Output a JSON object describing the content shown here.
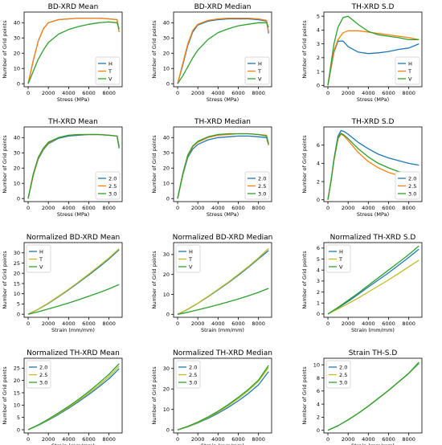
{
  "colors": {
    "blue": "#1f77b4",
    "orange": "#ff7f0e",
    "green": "#2ca02c",
    "olive": "#bcbd22",
    "darkgreen": "#2ca02c"
  },
  "chart_data": [
    {
      "type": "line",
      "title": "BD-XRD Mean",
      "xlabel": "Stress (MPa)",
      "ylabel": "Number of Grid points",
      "xlim": [
        -400,
        9300
      ],
      "ylim": [
        -2,
        47
      ],
      "xticks": [
        0,
        2000,
        4000,
        6000,
        8000
      ],
      "yticks": [
        0,
        10,
        20,
        30,
        40
      ],
      "legend": "lower-right",
      "x": [
        0,
        500,
        1000,
        1500,
        2000,
        3000,
        4000,
        5000,
        6000,
        7000,
        8000,
        8800,
        9000
      ],
      "series": [
        {
          "name": "H",
          "color": "#1f77b4",
          "values": [
            0,
            15,
            28,
            36,
            40,
            42,
            42.5,
            43,
            43,
            43,
            42.5,
            42,
            34
          ]
        },
        {
          "name": "T",
          "color": "#ff7f0e",
          "values": [
            0,
            15,
            28,
            36,
            40,
            42,
            42.5,
            43,
            43,
            43,
            42.5,
            42,
            34
          ]
        },
        {
          "name": "V",
          "color": "#2ca02c",
          "values": [
            0,
            8,
            16,
            22,
            27,
            32.5,
            35.5,
            37.5,
            39,
            40,
            40.5,
            40,
            36
          ]
        }
      ]
    },
    {
      "type": "line",
      "title": "BD-XRD Median",
      "xlabel": "Stress (MPa)",
      "ylabel": "Number of Grid points",
      "xlim": [
        -400,
        9300
      ],
      "ylim": [
        -2,
        47
      ],
      "xticks": [
        0,
        2000,
        4000,
        6000,
        8000
      ],
      "yticks": [
        0,
        10,
        20,
        30,
        40
      ],
      "legend": "lower-right",
      "x": [
        0,
        500,
        1000,
        1500,
        2000,
        3000,
        4000,
        5000,
        6000,
        7000,
        8000,
        8800,
        9000
      ],
      "series": [
        {
          "name": "H",
          "color": "#1f77b4",
          "values": [
            0,
            12,
            25,
            34,
            38.5,
            41,
            42,
            42.5,
            42.5,
            42.5,
            42,
            41,
            33
          ]
        },
        {
          "name": "T",
          "color": "#ff7f0e",
          "values": [
            0,
            13,
            26,
            35,
            39,
            41.5,
            42.5,
            43,
            43,
            43,
            42.5,
            41.5,
            34
          ]
        },
        {
          "name": "V",
          "color": "#2ca02c",
          "values": [
            0,
            5,
            11,
            17,
            22,
            29,
            33.5,
            36,
            38,
            39,
            40,
            40,
            37
          ]
        }
      ]
    },
    {
      "type": "line",
      "title": "TH-XRD S.D",
      "xlabel": "Stress (MPa)",
      "ylabel": "Number of Grid points",
      "xlim": [
        -400,
        9300
      ],
      "ylim": [
        -0.1,
        5.3
      ],
      "xticks": [
        0,
        2000,
        4000,
        6000,
        8000
      ],
      "yticks": [
        0,
        1,
        2,
        3,
        4,
        5
      ],
      "legend": "lower-right",
      "x": [
        0,
        300,
        600,
        1000,
        1500,
        2000,
        3000,
        4000,
        5000,
        6000,
        7000,
        8000,
        9000
      ],
      "series": [
        {
          "name": "H",
          "color": "#1f77b4",
          "values": [
            0,
            1.2,
            2.4,
            3.2,
            3.2,
            2.8,
            2.4,
            2.3,
            2.35,
            2.45,
            2.6,
            2.7,
            3.0
          ]
        },
        {
          "name": "T",
          "color": "#ff7f0e",
          "values": [
            0,
            1.3,
            2.5,
            3.3,
            3.8,
            3.95,
            3.95,
            3.85,
            3.75,
            3.65,
            3.55,
            3.45,
            3.3
          ]
        },
        {
          "name": "V",
          "color": "#2ca02c",
          "values": [
            0,
            1.5,
            3.0,
            4.2,
            4.9,
            5.0,
            4.4,
            3.9,
            3.65,
            3.55,
            3.45,
            3.3,
            3.3
          ]
        }
      ]
    },
    {
      "type": "line",
      "title": "TH-XRD Mean",
      "xlabel": "Stress (MPa)",
      "ylabel": "Number of Grid points",
      "xlim": [
        -400,
        9300
      ],
      "ylim": [
        -2,
        47
      ],
      "xticks": [
        0,
        2000,
        4000,
        6000,
        8000
      ],
      "yticks": [
        0,
        10,
        20,
        30,
        40
      ],
      "legend": "lower-right",
      "x": [
        0,
        500,
        1000,
        1500,
        2000,
        3000,
        4000,
        5000,
        6000,
        7000,
        8000,
        8800,
        9000
      ],
      "series": [
        {
          "name": "2.0",
          "color": "#1f77b4",
          "values": [
            0,
            15,
            26,
            32,
            36,
            39.5,
            41,
            41.5,
            42,
            42,
            41.5,
            41,
            33
          ]
        },
        {
          "name": "2.5",
          "color": "#ff7f0e",
          "values": [
            0,
            15,
            26.5,
            32.5,
            36.5,
            40,
            41.5,
            42,
            42,
            42,
            41.5,
            41,
            34
          ]
        },
        {
          "name": "3.0",
          "color": "#2ca02c",
          "values": [
            0,
            16,
            27,
            33,
            37,
            40,
            41.5,
            42,
            42,
            42,
            41.5,
            41,
            34
          ]
        }
      ]
    },
    {
      "type": "line",
      "title": "TH-XRD Median",
      "xlabel": "Stress (MPa)",
      "ylabel": "Number of Grid points",
      "xlim": [
        -400,
        9300
      ],
      "ylim": [
        -2,
        47
      ],
      "xticks": [
        0,
        2000,
        4000,
        6000,
        8000
      ],
      "yticks": [
        0,
        10,
        20,
        30,
        40
      ],
      "legend": "lower-right",
      "x": [
        0,
        500,
        1000,
        1500,
        2000,
        3000,
        4000,
        5000,
        6000,
        7000,
        8000,
        8800,
        9000
      ],
      "series": [
        {
          "name": "2.0",
          "color": "#1f77b4",
          "values": [
            0,
            15,
            27,
            32.5,
            35.5,
            38.5,
            40,
            40.5,
            41,
            41,
            40.5,
            40,
            35
          ]
        },
        {
          "name": "2.5",
          "color": "#ff7f0e",
          "values": [
            0,
            15.5,
            28,
            34,
            37,
            40,
            41.5,
            42,
            42.5,
            42.5,
            42,
            41.5,
            35
          ]
        },
        {
          "name": "3.0",
          "color": "#2ca02c",
          "values": [
            0,
            16,
            28.5,
            34.5,
            37.5,
            40.5,
            42,
            42.5,
            42.5,
            42.5,
            42,
            41,
            36
          ]
        }
      ]
    },
    {
      "type": "line",
      "title": "TH-XRD S.D",
      "xlabel": "Stress (MPa)",
      "ylabel": "Number of Grid points",
      "xlim": [
        -400,
        9300
      ],
      "ylim": [
        -0.2,
        8.0
      ],
      "xticks": [
        0,
        2000,
        4000,
        6000,
        8000
      ],
      "yticks": [
        0,
        2,
        4,
        6
      ],
      "legend": "lower-right",
      "x": [
        0,
        300,
        600,
        1000,
        1300,
        1600,
        2000,
        3000,
        4000,
        5000,
        6000,
        7000,
        8000,
        9000
      ],
      "series": [
        {
          "name": "2.0",
          "color": "#1f77b4",
          "values": [
            0,
            2.0,
            4.5,
            7.0,
            7.6,
            7.5,
            7.2,
            6.3,
            5.6,
            5.0,
            4.6,
            4.3,
            4.0,
            3.8
          ]
        },
        {
          "name": "2.5",
          "color": "#ff7f0e",
          "values": [
            0,
            2.0,
            4.3,
            6.7,
            7.2,
            7.0,
            6.5,
            5.2,
            4.2,
            3.5,
            3.0,
            2.7,
            2.4,
            2.3
          ]
        },
        {
          "name": "3.0",
          "color": "#2ca02c",
          "values": [
            0,
            2.0,
            4.4,
            6.8,
            7.3,
            7.1,
            6.7,
            5.6,
            4.7,
            4.0,
            3.5,
            3.1,
            2.8,
            3.0
          ]
        }
      ]
    },
    {
      "type": "line",
      "title": "Normalized BD-XRD Mean",
      "xlabel": "Strain (mm/mm)",
      "ylabel": "Number of Grid points",
      "xlim": [
        -400,
        9300
      ],
      "ylim": [
        -1.5,
        35
      ],
      "xticks": [
        0,
        2000,
        4000,
        6000,
        8000
      ],
      "yticks": [
        0,
        5,
        10,
        15,
        20,
        25,
        30
      ],
      "legend": "upper-left",
      "x": [
        0,
        1000,
        2000,
        3000,
        4000,
        5000,
        6000,
        7000,
        8000,
        9000
      ],
      "series": [
        {
          "name": "H",
          "color": "#1f77b4",
          "values": [
            0,
            2.4,
            5.3,
            8.5,
            11.9,
            15.5,
            19.2,
            23.0,
            27.0,
            31.5
          ]
        },
        {
          "name": "T",
          "color": "#bcbd22",
          "values": [
            0,
            2.5,
            5.5,
            8.8,
            12.2,
            15.8,
            19.6,
            23.5,
            27.5,
            32.0
          ]
        },
        {
          "name": "V",
          "color": "#2ca02c",
          "values": [
            0,
            1.2,
            2.6,
            4.0,
            5.5,
            7.1,
            8.8,
            10.5,
            12.4,
            14.5
          ]
        }
      ]
    },
    {
      "type": "line",
      "title": "Normalized BD-XRD Median",
      "xlabel": "Strain (mm/mm)",
      "ylabel": "Number of Grid points",
      "xlim": [
        -400,
        9300
      ],
      "ylim": [
        -1.5,
        36
      ],
      "xticks": [
        0,
        2000,
        4000,
        6000,
        8000
      ],
      "yticks": [
        0,
        10,
        20,
        30
      ],
      "legend": "upper-left",
      "x": [
        0,
        1000,
        2000,
        3000,
        4000,
        5000,
        6000,
        7000,
        8000,
        9000
      ],
      "series": [
        {
          "name": "H",
          "color": "#1f77b4",
          "values": [
            0,
            2.5,
            5.5,
            8.8,
            12.2,
            15.8,
            19.6,
            23.6,
            27.8,
            32.0
          ]
        },
        {
          "name": "T",
          "color": "#bcbd22",
          "values": [
            0,
            2.6,
            5.6,
            9.0,
            12.5,
            16.1,
            20.0,
            24.0,
            28.3,
            33.0
          ]
        },
        {
          "name": "V",
          "color": "#2ca02c",
          "values": [
            0,
            1.0,
            2.2,
            3.5,
            4.8,
            6.2,
            7.7,
            9.3,
            11.0,
            13.0
          ]
        }
      ]
    },
    {
      "type": "line",
      "title": "Normalized TH-XRD S.D",
      "xlabel": "Strain (mm/mm)",
      "ylabel": "Number of Grid points",
      "xlim": [
        -400,
        9300
      ],
      "ylim": [
        -0.3,
        6.5
      ],
      "xticks": [
        0,
        2000,
        4000,
        6000,
        8000
      ],
      "yticks": [
        0,
        1,
        2,
        3,
        4,
        5,
        6
      ],
      "legend": "upper-left",
      "x": [
        0,
        1000,
        2000,
        3000,
        4000,
        5000,
        6000,
        7000,
        8000,
        9000
      ],
      "series": [
        {
          "name": "H",
          "color": "#1f77b4",
          "values": [
            0,
            0.55,
            1.15,
            1.8,
            2.45,
            3.1,
            3.75,
            4.45,
            5.15,
            5.9
          ]
        },
        {
          "name": "T",
          "color": "#bcbd22",
          "values": [
            0,
            0.45,
            0.95,
            1.45,
            2.0,
            2.55,
            3.1,
            3.7,
            4.3,
            4.9
          ]
        },
        {
          "name": "V",
          "color": "#2ca02c",
          "values": [
            0,
            0.6,
            1.25,
            1.9,
            2.6,
            3.3,
            4.0,
            4.7,
            5.4,
            6.2
          ]
        }
      ]
    },
    {
      "type": "line",
      "title": "Normalized TH-XRD Mean",
      "xlabel": "Strain (mm/mm)",
      "ylabel": "Number of Grid points",
      "xlim": [
        -400,
        9300
      ],
      "ylim": [
        -1.3,
        29
      ],
      "xticks": [
        0,
        2000,
        4000,
        6000,
        8000
      ],
      "yticks": [
        0,
        5,
        10,
        15,
        20,
        25
      ],
      "legend": "upper-left",
      "x": [
        0,
        1000,
        2000,
        3000,
        4000,
        5000,
        6000,
        7000,
        8000,
        9000
      ],
      "series": [
        {
          "name": "2.0",
          "color": "#1f77b4",
          "values": [
            0,
            1.8,
            3.9,
            6.2,
            8.7,
            11.4,
            14.3,
            17.4,
            20.7,
            24.8
          ]
        },
        {
          "name": "2.5",
          "color": "#bcbd22",
          "values": [
            0,
            1.9,
            4.1,
            6.5,
            9.1,
            11.9,
            14.9,
            18.1,
            21.6,
            25.8
          ]
        },
        {
          "name": "3.0",
          "color": "#2ca02c",
          "values": [
            0,
            2.0,
            4.3,
            6.8,
            9.5,
            12.4,
            15.5,
            18.9,
            22.5,
            26.8
          ]
        }
      ]
    },
    {
      "type": "line",
      "title": "Normalized TH-XRD Median",
      "xlabel": "Strain (mm/mm)",
      "ylabel": "Number of Grid points",
      "xlim": [
        -400,
        9300
      ],
      "ylim": [
        -1.5,
        35
      ],
      "xticks": [
        0,
        2000,
        4000,
        6000,
        8000
      ],
      "yticks": [
        0,
        10,
        20,
        30
      ],
      "legend": "upper-left",
      "x": [
        0,
        1000,
        2000,
        3000,
        4000,
        5000,
        6000,
        7000,
        8000,
        9000
      ],
      "series": [
        {
          "name": "2.0",
          "color": "#1f77b4",
          "values": [
            0,
            1.5,
            3.4,
            5.6,
            8.1,
            11.0,
            14.2,
            17.8,
            22.0,
            28.5
          ]
        },
        {
          "name": "2.5",
          "color": "#bcbd22",
          "values": [
            0,
            1.6,
            3.6,
            6.0,
            8.7,
            11.8,
            15.3,
            19.2,
            23.7,
            30.5
          ]
        },
        {
          "name": "3.0",
          "color": "#2ca02c",
          "values": [
            0,
            1.7,
            3.8,
            6.3,
            9.1,
            12.3,
            15.9,
            19.8,
            24.3,
            31.5
          ]
        }
      ]
    },
    {
      "type": "line",
      "title": "Strain TH-S.D",
      "xlabel": "Strain (mm/mm)",
      "ylabel": "Number of Grid points",
      "xlim": [
        -400,
        9300
      ],
      "ylim": [
        -0.4,
        11
      ],
      "xticks": [
        0,
        2000,
        4000,
        6000,
        8000
      ],
      "yticks": [
        0,
        2,
        4,
        6,
        8,
        10
      ],
      "legend": "upper-left",
      "x": [
        0,
        1000,
        2000,
        3000,
        4000,
        5000,
        6000,
        7000,
        8000,
        9000
      ],
      "series": [
        {
          "name": "2.0",
          "color": "#1f77b4",
          "values": [
            0,
            0.7,
            1.6,
            2.6,
            3.7,
            4.9,
            6.1,
            7.4,
            8.7,
            10.2
          ]
        },
        {
          "name": "2.5",
          "color": "#bcbd22",
          "values": [
            0,
            0.7,
            1.6,
            2.6,
            3.7,
            4.9,
            6.1,
            7.4,
            8.7,
            10.3
          ]
        },
        {
          "name": "3.0",
          "color": "#2ca02c",
          "values": [
            0,
            0.7,
            1.6,
            2.6,
            3.7,
            4.9,
            6.1,
            7.4,
            8.7,
            10.4
          ]
        }
      ]
    }
  ]
}
